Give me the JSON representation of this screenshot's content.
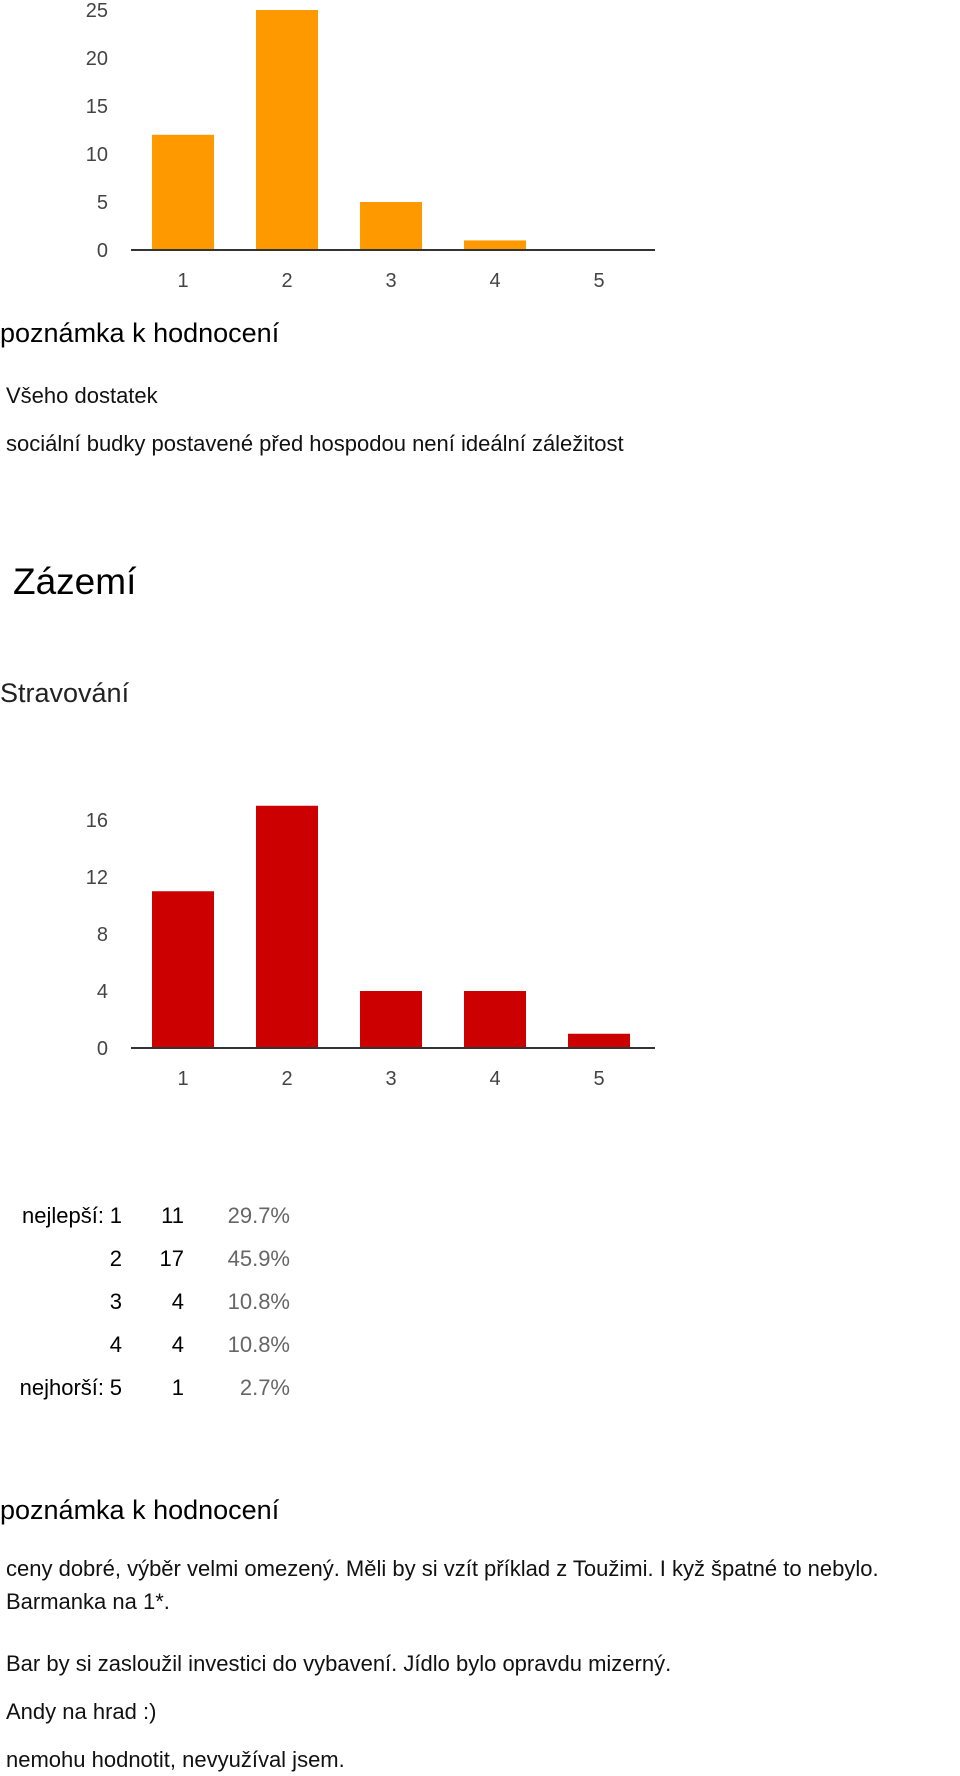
{
  "chart_top": {
    "chart_data": {
      "type": "bar",
      "categories": [
        "1",
        "2",
        "3",
        "4",
        "5"
      ],
      "values": [
        12,
        25,
        5,
        1,
        0
      ],
      "yticks": [
        0,
        5,
        10,
        15,
        20,
        25
      ],
      "ylim": [
        0,
        25
      ],
      "grid": false,
      "title": "",
      "xlabel": "",
      "ylabel": ""
    },
    "color": "#ff9900"
  },
  "note1": {
    "heading": "poznámka k hodnocení",
    "responses": [
      "Všeho dostatek",
      "sociální budky postavené před hospodou není ideální záležitost"
    ]
  },
  "section": {
    "title": "Zázemí"
  },
  "question": {
    "title": "Stravování"
  },
  "chart_bottom": {
    "chart_data": {
      "type": "bar",
      "categories": [
        "1",
        "2",
        "3",
        "4",
        "5"
      ],
      "values": [
        11,
        17,
        4,
        4,
        1
      ],
      "yticks": [
        0,
        4,
        8,
        12,
        16
      ],
      "ylim": [
        0,
        17
      ],
      "grid": false,
      "title": "",
      "xlabel": "",
      "ylabel": ""
    },
    "color": "#cc0000"
  },
  "stats": {
    "rows": [
      {
        "label": "nejlepší:",
        "rating": "1",
        "count": "11",
        "percent": "29.7%"
      },
      {
        "label": "",
        "rating": "2",
        "count": "17",
        "percent": "45.9%"
      },
      {
        "label": "",
        "rating": "3",
        "count": "4",
        "percent": "10.8%"
      },
      {
        "label": "",
        "rating": "4",
        "count": "4",
        "percent": "10.8%"
      },
      {
        "label": "nejhorší:",
        "rating": "5",
        "count": "1",
        "percent": "2.7%"
      }
    ]
  },
  "note2": {
    "heading": "poznámka k hodnocení",
    "responses": [
      "ceny dobré, výběr velmi omezený. Měli by si vzít příklad z Toužimi. I kyž špatné to nebylo. Barmanka na 1*.",
      "Bar by si zasloužil investici do vybavení. Jídlo bylo opravdu mizerný.",
      "Andy na hrad :)",
      "nemohu hodnotit, nevyužíval jsem."
    ]
  }
}
